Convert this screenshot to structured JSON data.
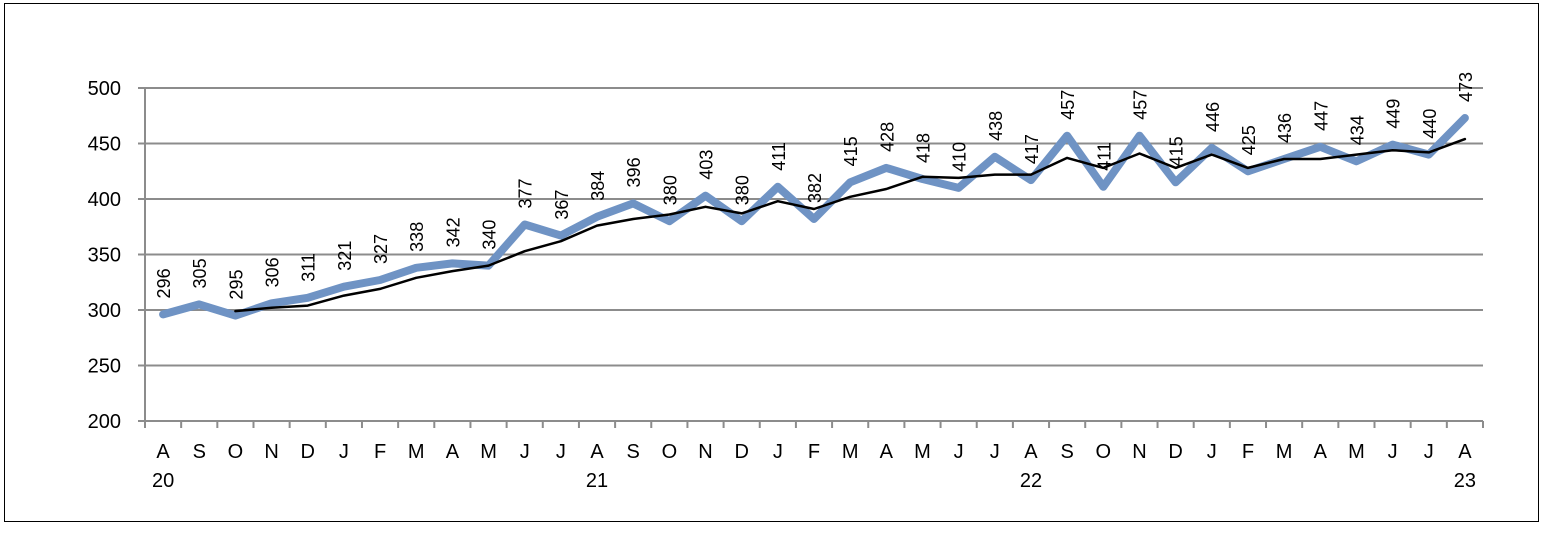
{
  "chart_data": {
    "type": "line",
    "title": "",
    "xlabel": "",
    "ylabel": "",
    "ylim": [
      200,
      500
    ],
    "yticks": [
      200,
      250,
      300,
      350,
      400,
      450,
      500
    ],
    "grid": "horizontal",
    "legend": "none",
    "categories": [
      "A",
      "S",
      "O",
      "N",
      "D",
      "J",
      "F",
      "M",
      "A",
      "M",
      "J",
      "J",
      "A",
      "S",
      "O",
      "N",
      "D",
      "J",
      "F",
      "M",
      "A",
      "M",
      "J",
      "J",
      "A",
      "S",
      "O",
      "N",
      "D",
      "J",
      "F",
      "M",
      "A",
      "M",
      "J",
      "J",
      "A"
    ],
    "year_labels": [
      {
        "index": 0,
        "label": "20"
      },
      {
        "index": 12,
        "label": "21"
      },
      {
        "index": 24,
        "label": "22"
      },
      {
        "index": 36,
        "label": "23"
      }
    ],
    "series": [
      {
        "style": "thick",
        "color": "#6f93c4",
        "values": [
          296,
          305,
          295,
          306,
          311,
          321,
          327,
          338,
          342,
          340,
          377,
          367,
          384,
          396,
          380,
          403,
          380,
          411,
          382,
          415,
          428,
          418,
          410,
          438,
          417,
          457,
          411,
          457,
          415,
          446,
          425,
          436,
          447,
          434,
          449,
          440,
          473
        ],
        "data_labels": true
      },
      {
        "style": "thin",
        "color": "#000000",
        "values": [
          null,
          null,
          299,
          302,
          304,
          313,
          319,
          329,
          335,
          340,
          353,
          362,
          376,
          382,
          386,
          393,
          387,
          398,
          391,
          402,
          409,
          420,
          419,
          422,
          422,
          437,
          428,
          441,
          428,
          440,
          428,
          436,
          436,
          440,
          444,
          442,
          454
        ],
        "data_labels": false
      }
    ]
  }
}
